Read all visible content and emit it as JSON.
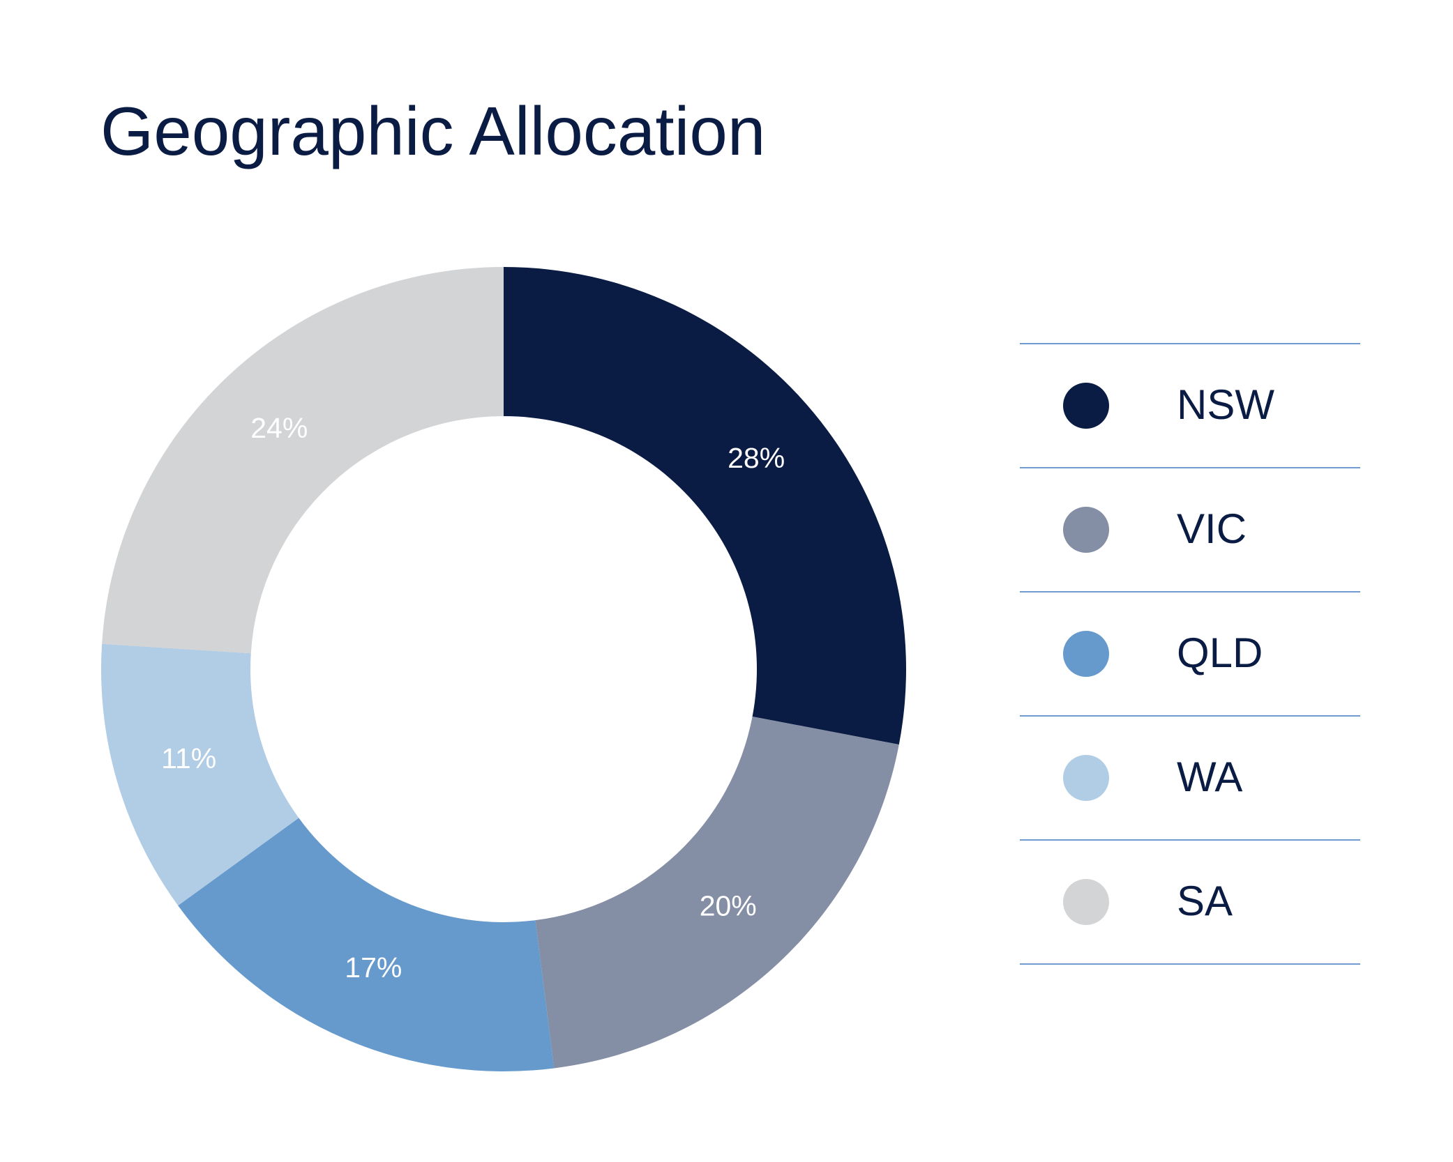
{
  "chart_data": {
    "type": "pie",
    "title": "Geographic Allocation",
    "categories": [
      "NSW",
      "VIC",
      "QLD",
      "WA",
      "SA"
    ],
    "values": [
      28,
      20,
      17,
      11,
      24
    ],
    "value_labels": [
      "28%",
      "20%",
      "17%",
      "11%",
      "24%"
    ],
    "colors": [
      "#0a1c44",
      "#848ea4",
      "#6699cc",
      "#b1cce5",
      "#d3d4d6"
    ]
  }
}
